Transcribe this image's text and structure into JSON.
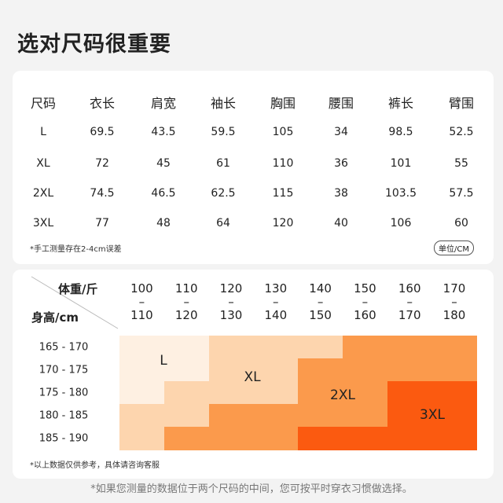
{
  "header": {
    "title": "选对尺码很重要"
  },
  "size_table": {
    "header": [
      "尺码",
      "衣长",
      "肩宽",
      "袖长",
      "胸围",
      "腰围",
      "裤长",
      "臂围"
    ],
    "rows": [
      [
        "L",
        "69.5",
        "43.5",
        "59.5",
        "105",
        "34",
        "98.5",
        "52.5"
      ],
      [
        "XL",
        "72",
        "45",
        "61",
        "110",
        "36",
        "101",
        "55"
      ],
      [
        "2XL",
        "74.5",
        "46.5",
        "62.5",
        "115",
        "38",
        "103.5",
        "57.5"
      ],
      [
        "3XL",
        "77",
        "48",
        "64",
        "120",
        "40",
        "106",
        "60"
      ]
    ],
    "note": "*手工测量存在2-4cm误差",
    "unit": "单位/CM"
  },
  "size_grid": {
    "weight_label": "体重/斤",
    "height_label": "身高/cm",
    "range_separator": "–",
    "weight_ranges": [
      {
        "from": "100",
        "to": "110"
      },
      {
        "from": "110",
        "to": "120"
      },
      {
        "from": "120",
        "to": "130"
      },
      {
        "from": "130",
        "to": "140"
      },
      {
        "from": "140",
        "to": "150"
      },
      {
        "from": "150",
        "to": "160"
      },
      {
        "from": "160",
        "to": "170"
      },
      {
        "from": "170",
        "to": "180"
      }
    ],
    "height_ranges": [
      "165 - 170",
      "170 - 175",
      "175 - 180",
      "180 - 185",
      "185 - 190"
    ],
    "cell_colors": [
      [
        "#fef0e2",
        "#fef0e2",
        "#fdd5ae",
        "#fdd5ae",
        "#fdd5ae",
        "#fb9a4c",
        "#fb9a4c",
        "#fb9a4c"
      ],
      [
        "#fef0e2",
        "#fef0e2",
        "#fdd5ae",
        "#fdd5ae",
        "#fb9a4c",
        "#fb9a4c",
        "#fb9a4c",
        "#fb9a4c"
      ],
      [
        "#fef0e2",
        "#fdd5ae",
        "#fdd5ae",
        "#fdd5ae",
        "#fb9a4c",
        "#fb9a4c",
        "#fb5a10",
        "#fb5a10"
      ],
      [
        "#fdd5ae",
        "#fdd5ae",
        "#fb9a4c",
        "#fb9a4c",
        "#fb9a4c",
        "#fb9a4c",
        "#fb5a10",
        "#fb5a10"
      ],
      [
        "#fdd5ae",
        "#fb9a4c",
        "#fb9a4c",
        "#fb9a4c",
        "#fb5a10",
        "#fb5a10",
        "#fb5a10",
        "#fb5a10"
      ]
    ],
    "size_labels": [
      "L",
      "XL",
      "2XL",
      "3XL"
    ],
    "note": "*以上数据仅供参考，具体请咨询客服"
  },
  "footer": "*如果您测量的数据位于两个尺码的中间，您可按平时穿衣习惯做选择。"
}
